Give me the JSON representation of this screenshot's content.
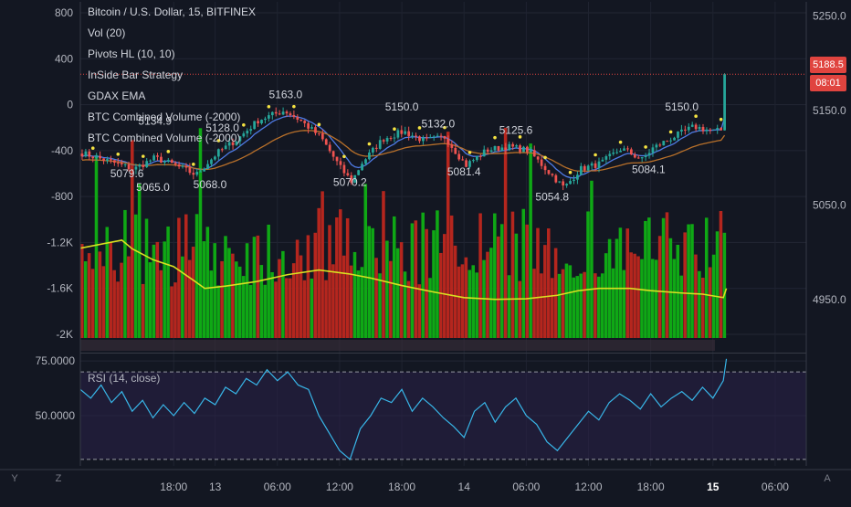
{
  "legend": {
    "title": "Bitcoin / U.S. Dollar, 15, BITFINEX",
    "items": [
      "Vol (20)",
      "Pivots HL (10, 10)",
      "InSide Bar Strategy",
      "GDAX EMA",
      "BTC Combined Volume (-2000)",
      "BTC Combined Volume (-2000)"
    ]
  },
  "price_tags": {
    "last_price": "5188.5",
    "countdown": "08:01"
  },
  "corner_buttons": {
    "left": "Y",
    "middle": "Z",
    "right": "A"
  },
  "colors": {
    "background": "#131722",
    "up": "#26a69a",
    "down": "#ef5350",
    "vol_up": "#0fa815",
    "vol_down": "#b5261e",
    "vol_ma": "#d9e021",
    "rsi": "#38b6e8",
    "rsi_band": "#2a2148",
    "ema_fast": "#4f7be6",
    "ema_slow": "#b8702a"
  },
  "chart_data": {
    "type": "candlestick",
    "left_axis_ticks": [
      "800",
      "400",
      "0",
      "-400",
      "-800",
      "-1.2K",
      "-1.6K",
      "-2K"
    ],
    "left_axis_values": [
      800,
      400,
      0,
      -400,
      -800,
      -1200,
      -1600,
      -2000
    ],
    "right_axis_ticks": [
      "5250.0",
      "5150.0",
      "5050.0",
      "4950.0"
    ],
    "right_axis_values": [
      5250,
      5150,
      5050,
      4950
    ],
    "price_range": [
      4895,
      5265
    ],
    "x_ticks": [
      "18:00",
      "13",
      "06:00",
      "12:00",
      "18:00",
      "14",
      "06:00",
      "12:00",
      "18:00",
      "15",
      "06:00"
    ],
    "x_tick_positions": [
      9,
      13,
      19,
      25,
      31,
      37,
      43,
      49,
      55,
      61,
      67
    ],
    "time_range": [
      0,
      70
    ],
    "pivot_labels": [
      {
        "text": "5163.0",
        "t": 19.8,
        "price": 5163.0
      },
      {
        "text": "5134.9",
        "t": 7.2,
        "price": 5134.9
      },
      {
        "text": "5128.0",
        "t": 13.7,
        "price": 5128.0
      },
      {
        "text": "5150.0",
        "t": 31.0,
        "price": 5150.0
      },
      {
        "text": "5132.0",
        "t": 34.5,
        "price": 5132.0
      },
      {
        "text": "5125.6",
        "t": 42.0,
        "price": 5125.6
      },
      {
        "text": "5150.0",
        "t": 58.0,
        "price": 5150.0
      },
      {
        "text": "5079.6",
        "t": 4.5,
        "price": 5079.6
      },
      {
        "text": "5065.0",
        "t": 7.0,
        "price": 5065.0
      },
      {
        "text": "5068.0",
        "t": 12.5,
        "price": 5068.0
      },
      {
        "text": "5070.2",
        "t": 26.0,
        "price": 5070.2
      },
      {
        "text": "5081.4",
        "t": 37.0,
        "price": 5081.4
      },
      {
        "text": "5054.8",
        "t": 45.5,
        "price": 5054.8
      },
      {
        "text": "5084.1",
        "t": 54.8,
        "price": 5084.1
      }
    ],
    "price_keypoints": [
      [
        0,
        5105
      ],
      [
        3,
        5095
      ],
      [
        5,
        5088
      ],
      [
        7,
        5100
      ],
      [
        9,
        5092
      ],
      [
        11,
        5082
      ],
      [
        13,
        5105
      ],
      [
        15,
        5120
      ],
      [
        17,
        5140
      ],
      [
        19.5,
        5150
      ],
      [
        21,
        5140
      ],
      [
        23,
        5122
      ],
      [
        25,
        5088
      ],
      [
        26,
        5075
      ],
      [
        27,
        5095
      ],
      [
        29,
        5120
      ],
      [
        31,
        5128
      ],
      [
        33,
        5118
      ],
      [
        35,
        5122
      ],
      [
        37,
        5092
      ],
      [
        39,
        5108
      ],
      [
        41,
        5112
      ],
      [
        43,
        5108
      ],
      [
        45,
        5085
      ],
      [
        46.5,
        5068
      ],
      [
        48,
        5088
      ],
      [
        50,
        5094
      ],
      [
        52,
        5110
      ],
      [
        54,
        5098
      ],
      [
        55,
        5110
      ],
      [
        57,
        5122
      ],
      [
        59,
        5133
      ],
      [
        61,
        5128
      ],
      [
        62,
        5130
      ],
      [
        62.3,
        5140
      ]
    ],
    "last_price": 5188.5,
    "volume_ma": [
      [
        0,
        -1250
      ],
      [
        4,
        -1180
      ],
      [
        5,
        -1255
      ],
      [
        7,
        -1350
      ],
      [
        9,
        -1410
      ],
      [
        11,
        -1535
      ],
      [
        12,
        -1600
      ],
      [
        14,
        -1580
      ],
      [
        17,
        -1540
      ],
      [
        20,
        -1480
      ],
      [
        23,
        -1440
      ],
      [
        26,
        -1475
      ],
      [
        28,
        -1510
      ],
      [
        31,
        -1575
      ],
      [
        34,
        -1630
      ],
      [
        37,
        -1680
      ],
      [
        40,
        -1695
      ],
      [
        43,
        -1690
      ],
      [
        46,
        -1660
      ],
      [
        48,
        -1620
      ],
      [
        50,
        -1600
      ],
      [
        53,
        -1600
      ],
      [
        55,
        -1620
      ],
      [
        58,
        -1640
      ],
      [
        60,
        -1650
      ],
      [
        62,
        -1680
      ],
      [
        62.3,
        -1600
      ]
    ],
    "rsi": {
      "title": "RSI (14, close)",
      "ticks": [
        "75.0000",
        "50.0000"
      ],
      "tick_values": [
        75,
        50
      ],
      "range": [
        27,
        78
      ],
      "upper_band": 70,
      "lower_band": 30,
      "keypoints": [
        [
          0,
          62
        ],
        [
          1,
          58
        ],
        [
          2,
          64
        ],
        [
          3,
          56
        ],
        [
          4,
          61
        ],
        [
          5,
          52
        ],
        [
          6,
          57
        ],
        [
          7,
          49
        ],
        [
          8,
          55
        ],
        [
          9,
          50
        ],
        [
          10,
          56
        ],
        [
          11,
          51
        ],
        [
          12,
          58
        ],
        [
          13,
          55
        ],
        [
          14,
          63
        ],
        [
          15,
          60
        ],
        [
          16,
          67
        ],
        [
          17,
          64
        ],
        [
          18,
          71
        ],
        [
          19,
          66
        ],
        [
          20,
          70
        ],
        [
          21,
          64
        ],
        [
          22,
          62
        ],
        [
          23,
          50
        ],
        [
          24,
          42
        ],
        [
          25,
          34
        ],
        [
          26,
          30
        ],
        [
          27,
          44
        ],
        [
          28,
          50
        ],
        [
          29,
          58
        ],
        [
          30,
          56
        ],
        [
          31,
          62
        ],
        [
          32,
          52
        ],
        [
          33,
          58
        ],
        [
          34,
          54
        ],
        [
          35,
          49
        ],
        [
          36,
          45
        ],
        [
          37,
          40
        ],
        [
          38,
          52
        ],
        [
          39,
          56
        ],
        [
          40,
          47
        ],
        [
          41,
          54
        ],
        [
          42,
          58
        ],
        [
          43,
          50
        ],
        [
          44,
          46
        ],
        [
          45,
          38
        ],
        [
          46,
          34
        ],
        [
          47,
          40
        ],
        [
          48,
          46
        ],
        [
          49,
          52
        ],
        [
          50,
          48
        ],
        [
          51,
          56
        ],
        [
          52,
          60
        ],
        [
          53,
          57
        ],
        [
          54,
          53
        ],
        [
          55,
          60
        ],
        [
          56,
          54
        ],
        [
          57,
          58
        ],
        [
          58,
          61
        ],
        [
          59,
          57
        ],
        [
          60,
          63
        ],
        [
          61,
          58
        ],
        [
          62,
          66
        ],
        [
          62.3,
          76
        ]
      ]
    }
  }
}
